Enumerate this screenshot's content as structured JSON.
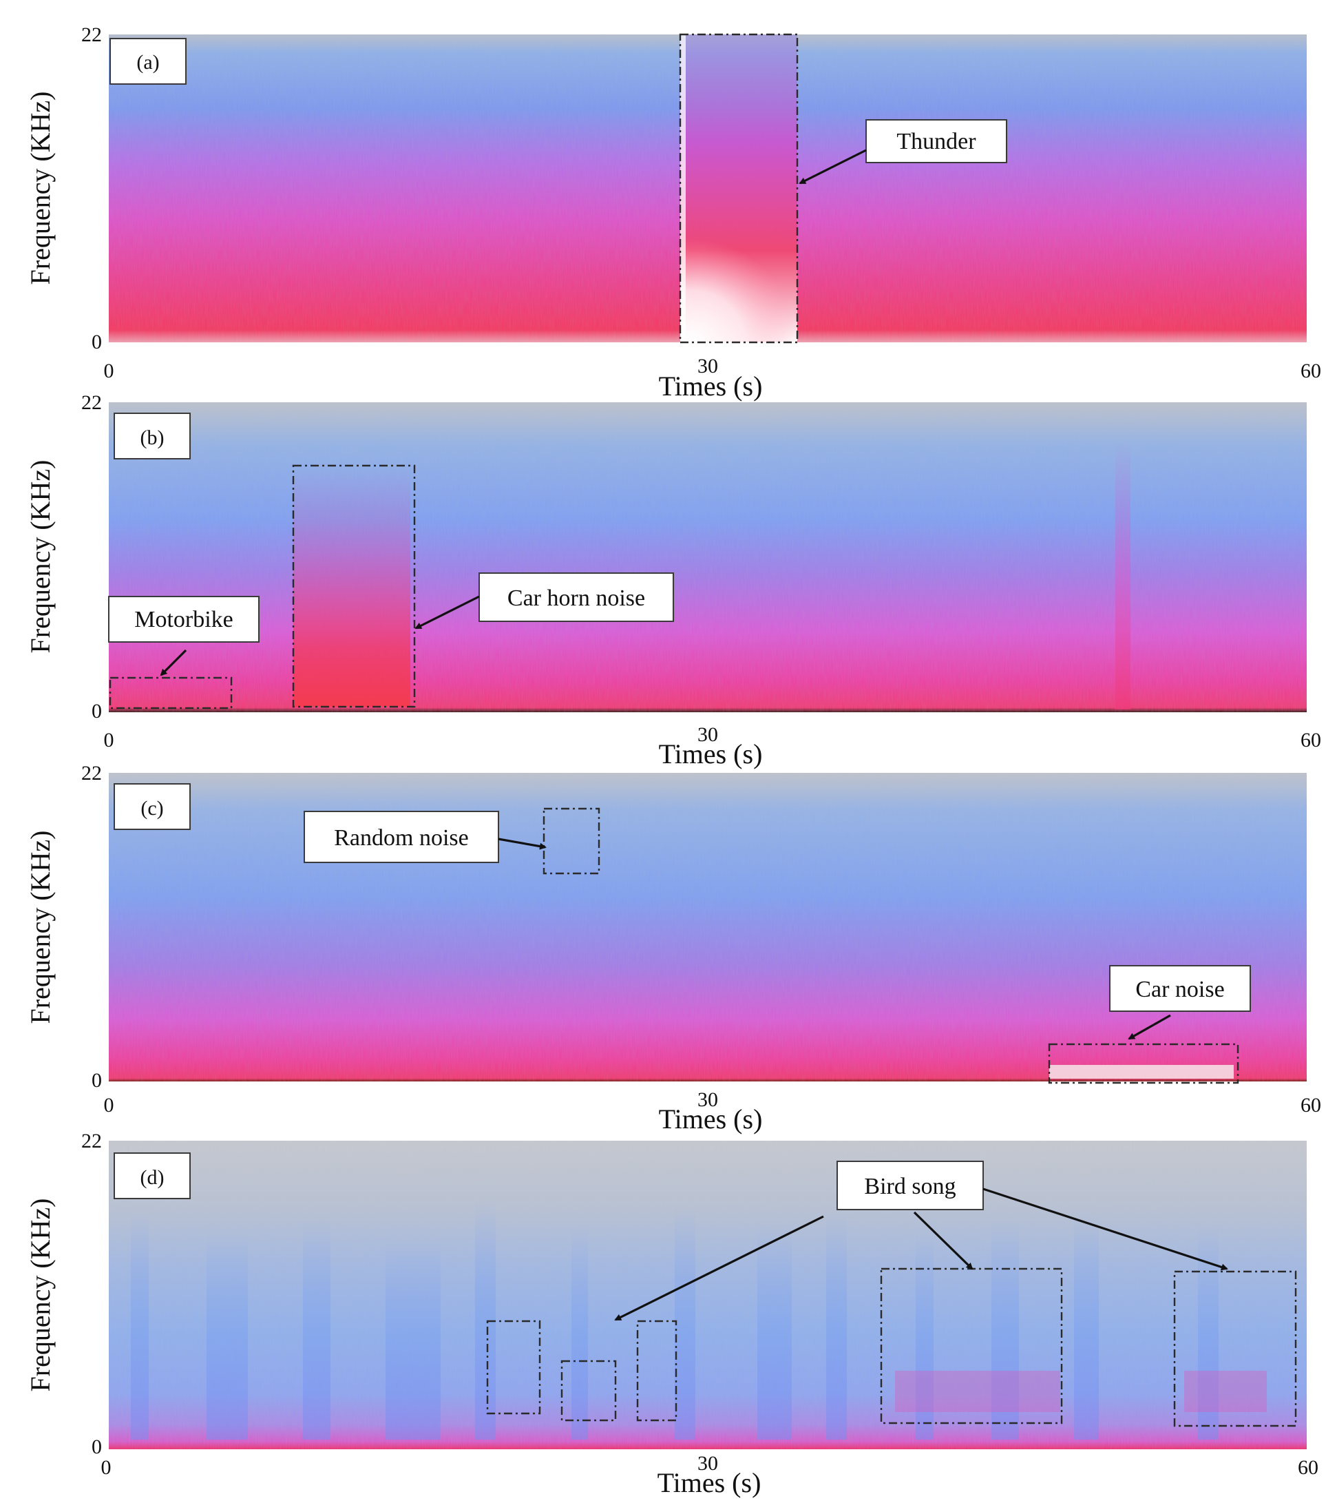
{
  "chart_data": [
    {
      "type": "heatmap",
      "panel_label": "(a)",
      "xlabel": "Times  (s)",
      "ylabel": "Frequency (KHz)",
      "xlim": [
        0,
        60
      ],
      "ylim": [
        0,
        22
      ],
      "x_ticks": [
        "0",
        "30",
        "60"
      ],
      "y_ticks": [
        "0",
        "22"
      ],
      "annotations": [
        {
          "label": "Thunder",
          "time_range": [
            28.5,
            34.5
          ],
          "freq_range": [
            0,
            22
          ]
        }
      ]
    },
    {
      "type": "heatmap",
      "panel_label": "(b)",
      "xlabel": "Times  (s)",
      "ylabel": "Frequency (KHz)",
      "xlim": [
        0,
        60
      ],
      "ylim": [
        0,
        22
      ],
      "x_ticks": [
        "0",
        "30",
        "60"
      ],
      "y_ticks": [
        "0",
        "22"
      ],
      "annotations": [
        {
          "label": "Motorbike",
          "time_range": [
            0,
            6
          ],
          "freq_range": [
            0,
            2.2
          ]
        },
        {
          "label": "Car horn noise",
          "time_range": [
            9,
            15
          ],
          "freq_range": [
            0,
            17.5
          ]
        }
      ]
    },
    {
      "type": "heatmap",
      "panel_label": "(c)",
      "xlabel": "Times  (s)",
      "ylabel": "Frequency (KHz)",
      "xlim": [
        0,
        60
      ],
      "ylim": [
        0,
        22
      ],
      "x_ticks": [
        "0",
        "30",
        "60"
      ],
      "y_ticks": [
        "0",
        "22"
      ],
      "annotations": [
        {
          "label": "Random noise",
          "time_range": [
            21.5,
            24.5
          ],
          "freq_range": [
            14.5,
            19.3
          ]
        },
        {
          "label": "Car noise",
          "time_range": [
            47,
            56.5
          ],
          "freq_range": [
            0,
            2.6
          ]
        }
      ]
    },
    {
      "type": "heatmap",
      "panel_label": "(d)",
      "xlabel": "Times  (s)",
      "ylabel": "Frequency (KHz)",
      "xlim": [
        0,
        60
      ],
      "ylim": [
        0,
        22
      ],
      "x_ticks": [
        "0",
        "30",
        "60"
      ],
      "y_ticks": [
        "0",
        "22"
      ],
      "annotations": [
        {
          "label": "Bird song",
          "time_range": [
            19,
            21.7
          ],
          "freq_range": [
            2.2,
            8.8
          ]
        },
        {
          "label": "Bird song",
          "time_range": [
            22.8,
            25.6
          ],
          "freq_range": [
            1.8,
            6.2
          ]
        },
        {
          "label": "Bird song",
          "time_range": [
            26.6,
            28.6
          ],
          "freq_range": [
            1.8,
            8.8
          ]
        },
        {
          "label": "Bird song",
          "time_range": [
            38.7,
            47.8
          ],
          "freq_range": [
            1.8,
            13
          ]
        },
        {
          "label": "Bird song",
          "time_range": [
            53.5,
            59.5
          ],
          "freq_range": [
            1.6,
            12.7
          ]
        }
      ]
    }
  ]
}
